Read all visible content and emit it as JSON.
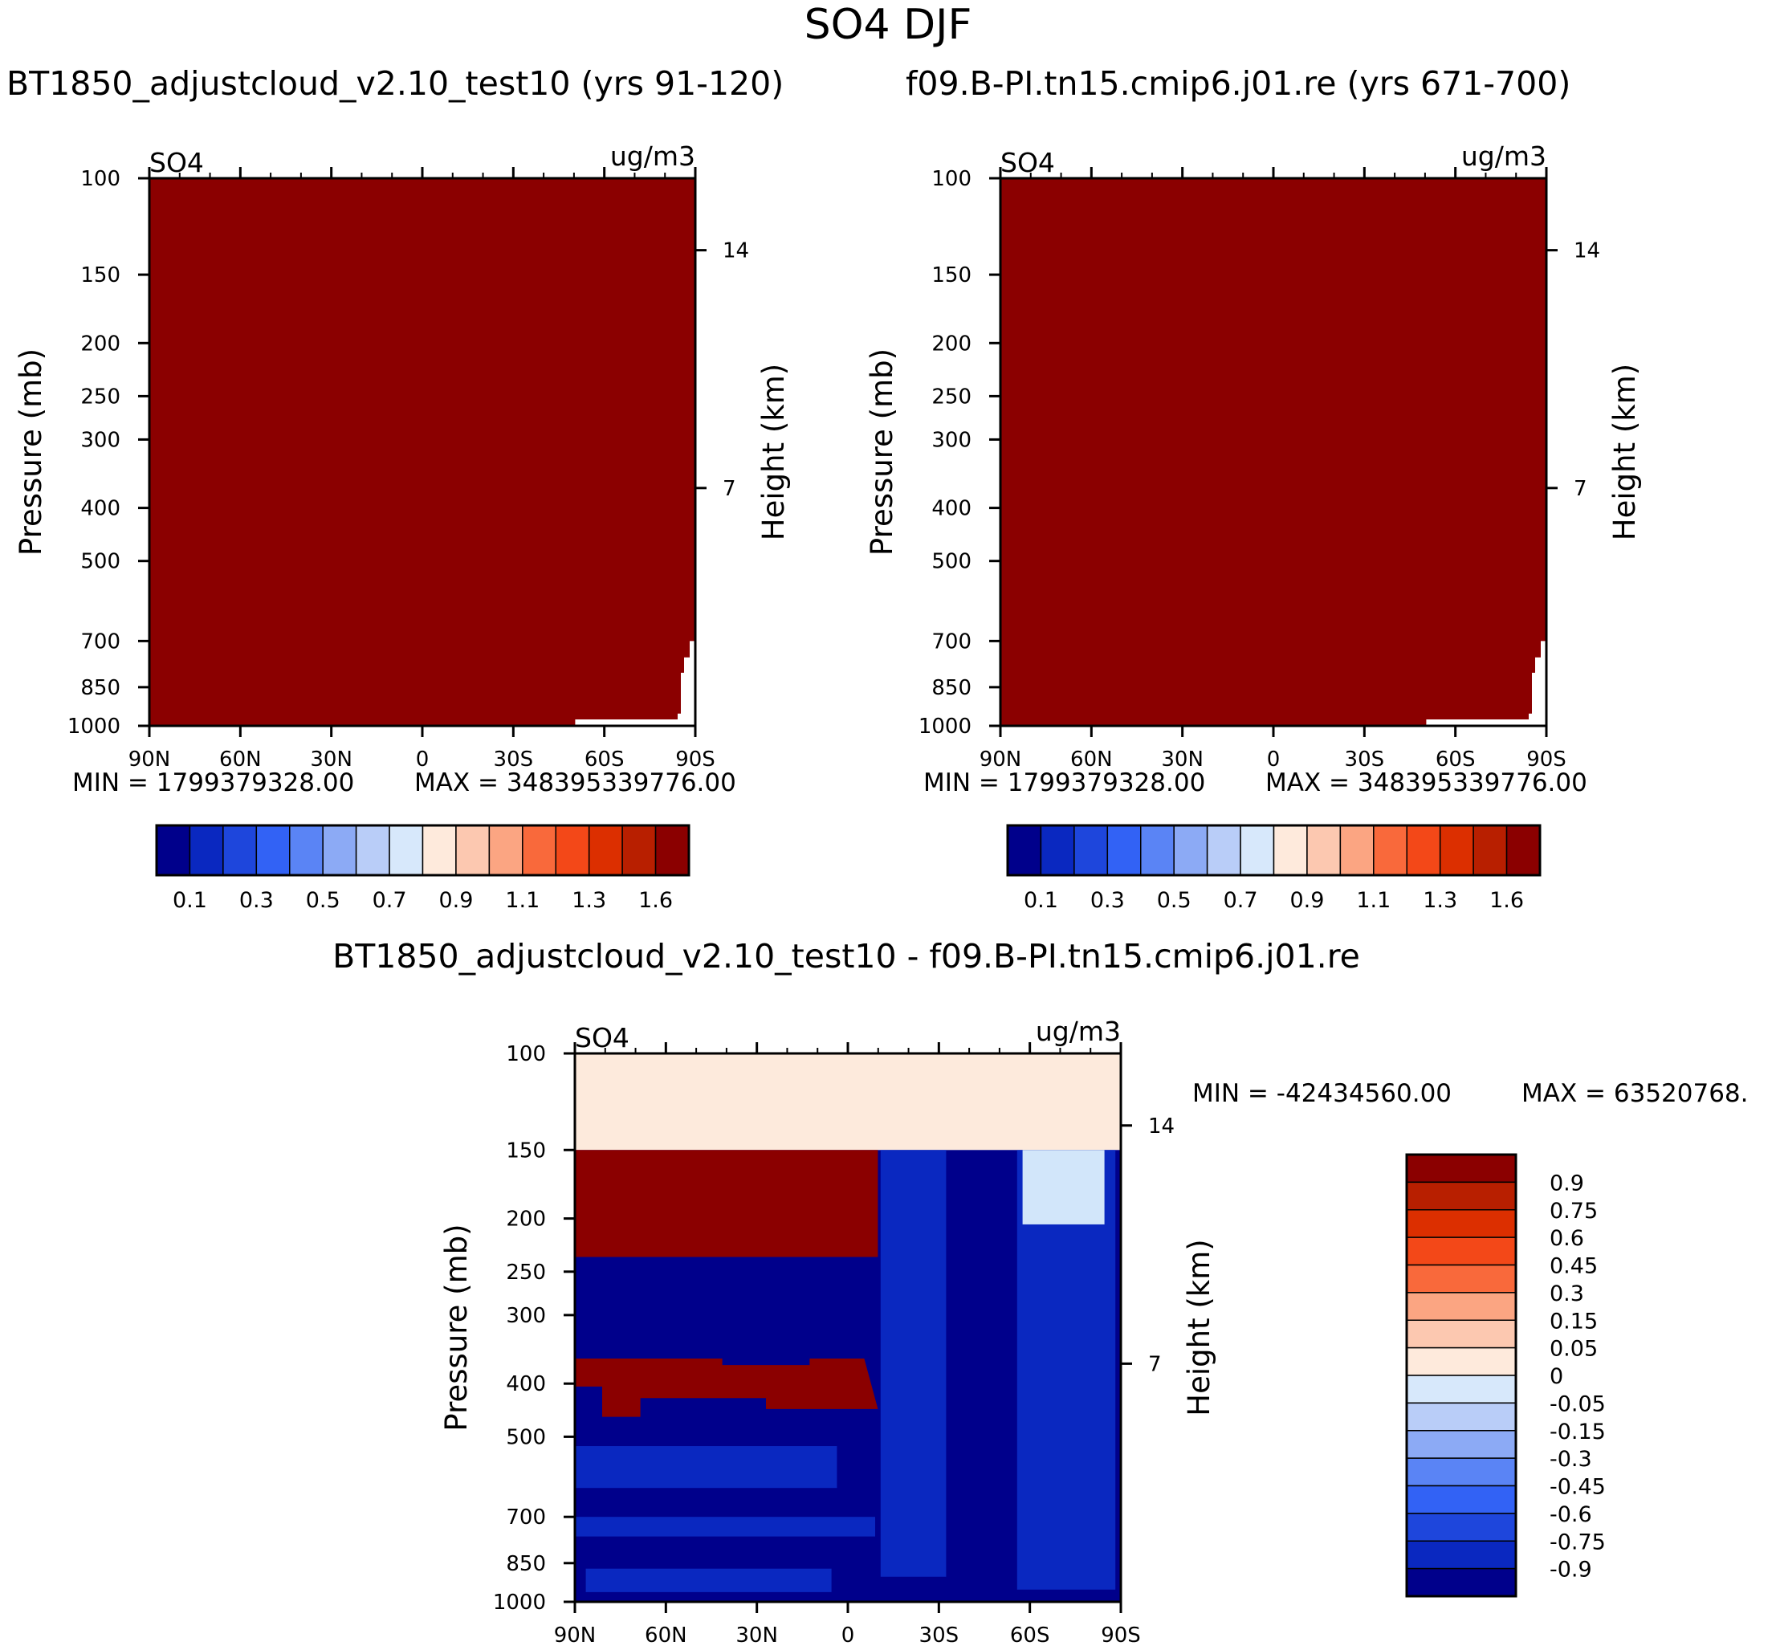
{
  "figure_title": "SO4 DJF",
  "colors": {
    "saturated_red": "#8b0000",
    "deep_blue": "#00008b",
    "mid_blue": "#0a28c0",
    "light_blue": "#d2e6fa",
    "peach": "#fdeadc"
  },
  "chart_data": [
    {
      "type": "heatmap",
      "title": "BT1850_adjustcloud_v2.10_test10 (yrs 91-120)",
      "variable_label": "SO4",
      "units_label": "ug/m3",
      "ylabel": "Pressure (mb)",
      "y2label": "Height (km)",
      "x_ticks": [
        "90N",
        "60N",
        "30N",
        "0",
        "30S",
        "60S",
        "90S"
      ],
      "y_ticks": [
        "100",
        "150",
        "200",
        "250",
        "300",
        "400",
        "500",
        "700",
        "850",
        "1000"
      ],
      "y2_ticks": [
        "14",
        "7"
      ],
      "xlim": [
        90,
        -90
      ],
      "ylim": [
        1000,
        100
      ],
      "min_text": "MIN = 1799379328.00",
      "max_text": "MAX = 348395339776.00",
      "field_description": "values exceed top contour level everywhere (saturated dark red)",
      "colorbar": {
        "orientation": "horizontal",
        "labels": [
          "0.1",
          "0.3",
          "0.5",
          "0.7",
          "0.9",
          "1.1",
          "1.3",
          "1.6"
        ],
        "colors": [
          "#00008b",
          "#0a28c0",
          "#1e46dc",
          "#3262f5",
          "#5a84f5",
          "#8caaf5",
          "#b9cdf8",
          "#d7e8fb",
          "#feeadc",
          "#fcc8b0",
          "#fba582",
          "#f9693b",
          "#f34818",
          "#dc2f00",
          "#b81f00",
          "#8b0000"
        ]
      }
    },
    {
      "type": "heatmap",
      "title": "f09.B-PI.tn15.cmip6.j01.re (yrs 671-700)",
      "variable_label": "SO4",
      "units_label": "ug/m3",
      "ylabel": "Pressure (mb)",
      "y2label": "Height (km)",
      "x_ticks": [
        "90N",
        "60N",
        "30N",
        "0",
        "30S",
        "60S",
        "90S"
      ],
      "y_ticks": [
        "100",
        "150",
        "200",
        "250",
        "300",
        "400",
        "500",
        "700",
        "850",
        "1000"
      ],
      "y2_ticks": [
        "14",
        "7"
      ],
      "xlim": [
        90,
        -90
      ],
      "ylim": [
        1000,
        100
      ],
      "min_text": "MIN = 1799379328.00",
      "max_text": "MAX = 348395339776.00",
      "field_description": "values exceed top contour level everywhere (saturated dark red)",
      "colorbar": {
        "orientation": "horizontal",
        "labels": [
          "0.1",
          "0.3",
          "0.5",
          "0.7",
          "0.9",
          "1.1",
          "1.3",
          "1.6"
        ],
        "colors": [
          "#00008b",
          "#0a28c0",
          "#1e46dc",
          "#3262f5",
          "#5a84f5",
          "#8caaf5",
          "#b9cdf8",
          "#d7e8fb",
          "#feeadc",
          "#fcc8b0",
          "#fba582",
          "#f9693b",
          "#f34818",
          "#dc2f00",
          "#b81f00",
          "#8b0000"
        ]
      }
    },
    {
      "type": "heatmap",
      "title": "BT1850_adjustcloud_v2.10_test10 - f09.B-PI.tn15.cmip6.j01.re",
      "variable_label": "SO4",
      "units_label": "ug/m3",
      "ylabel": "Pressure (mb)",
      "y2label": "Height (km)",
      "x_ticks": [
        "90N",
        "60N",
        "30N",
        "0",
        "30S",
        "60S",
        "90S"
      ],
      "y_ticks": [
        "100",
        "150",
        "200",
        "250",
        "300",
        "400",
        "500",
        "700",
        "850",
        "1000"
      ],
      "y2_ticks": [
        "14",
        "7"
      ],
      "xlim": [
        90,
        -90
      ],
      "ylim": [
        1000,
        100
      ],
      "min_text": "MIN = -42434560.00",
      "max_text": "MAX = 63520768.",
      "field_description": "difference field: positive (dark red) 90N-10S near 150-230 mb and 350-450 mb, near-zero positive above 150 mb, negative blues elsewhere",
      "colorbar": {
        "orientation": "vertical",
        "labels": [
          "0.9",
          "0.75",
          "0.6",
          "0.45",
          "0.3",
          "0.15",
          "0.05",
          "0",
          "-0.05",
          "-0.15",
          "-0.3",
          "-0.45",
          "-0.6",
          "-0.75",
          "-0.9"
        ],
        "colors": [
          "#8b0000",
          "#b81f00",
          "#dc2f00",
          "#f34818",
          "#f9693b",
          "#fba582",
          "#fcc8b0",
          "#feeadc",
          "#d7e8fb",
          "#b9cdf8",
          "#8caaf5",
          "#5a84f5",
          "#3262f5",
          "#1e46dc",
          "#0a28c0",
          "#00008b"
        ]
      }
    }
  ]
}
